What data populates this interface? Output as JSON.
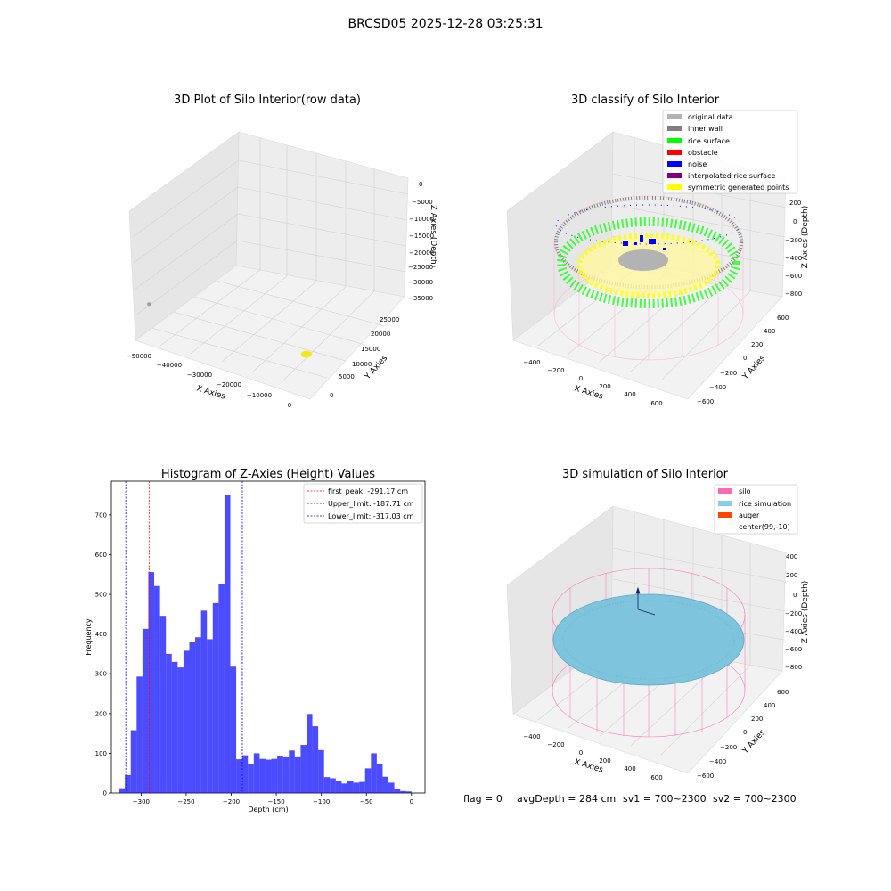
{
  "figure": {
    "suptitle": "BRCSD05 2025-12-28 03:25:31",
    "status": {
      "flag": "flag = 0",
      "avg_depth": "avgDepth = 284 cm",
      "sv1": "sv1 = 700~2300",
      "sv2": "sv2 = 700~2300"
    }
  },
  "chart_data": [
    {
      "type": "scatter",
      "panel": "raw",
      "title": "3D Plot of Silo Interior(row data)",
      "xlabel": "X Axies",
      "ylabel": "Y Axies",
      "zlabel": "Z Axies (Depth)",
      "x_ticks": [
        "−50000",
        "−40000",
        "−30000",
        "−20000",
        "−10000",
        "0"
      ],
      "y_ticks": [
        "0",
        "5000",
        "10000",
        "15000",
        "20000",
        "25000"
      ],
      "z_ticks": [
        "0",
        "−5000",
        "−10000",
        "−15000",
        "−20000",
        "−25000",
        "−30000",
        "−35000"
      ],
      "xlim": [
        -52000,
        2000
      ],
      "ylim": [
        -2000,
        27000
      ],
      "zlim": [
        -37000,
        1000
      ],
      "grid": true,
      "series": [
        {
          "name": "",
          "color": "#9e9e9e",
          "points": [
            [
              -50500,
              500,
              -21000
            ]
          ]
        },
        {
          "name": "",
          "color": "#f2e61c",
          "points": [
            [
              -1500,
              200,
              -19000
            ]
          ]
        }
      ]
    },
    {
      "type": "scatter",
      "panel": "classify",
      "title": "3D classify of Silo Interior",
      "xlabel": "X Axies",
      "ylabel": "Y Axies",
      "zlabel": "Z Axies (Depth)",
      "x_ticks": [
        "−400",
        "−200",
        "0",
        "200",
        "400",
        "600"
      ],
      "y_ticks": [
        "−600",
        "−400",
        "−200",
        "0",
        "200",
        "400",
        "600"
      ],
      "z_ticks": [
        "200",
        "0",
        "−200",
        "−400",
        "−600",
        "−800"
      ],
      "grid": true,
      "legend": {
        "location": "top-right",
        "entries": [
          {
            "label": "original data",
            "color": "#b3b3b3"
          },
          {
            "label": "inner wall",
            "color": "#808080"
          },
          {
            "label": "rice surface",
            "color": "#00ff00"
          },
          {
            "label": "obstacle",
            "color": "#ff0000"
          },
          {
            "label": "noise",
            "color": "#0000ff"
          },
          {
            "label": "interpolated rice surface",
            "color": "#800080"
          },
          {
            "label": "symmetric generated points",
            "color": "#ffff00"
          }
        ]
      }
    },
    {
      "type": "bar",
      "panel": "histogram",
      "title": "Histogram of Z-Axies (Height) Values",
      "xlabel": "Depth (cm)",
      "ylabel": "Frequency",
      "xlim": [
        -333,
        15
      ],
      "ylim": [
        0,
        785
      ],
      "x_ticks": [
        -300,
        -250,
        -200,
        -150,
        -100,
        -50,
        0
      ],
      "x_tick_labels": [
        "−300",
        "−250",
        "−200",
        "−150",
        "−100",
        "−50",
        "0"
      ],
      "y_ticks": [
        0,
        100,
        200,
        300,
        400,
        500,
        600,
        700
      ],
      "bar_color": "#0000ff",
      "bin_edges": [
        -324.5,
        -318.0,
        -311.5,
        -305.0,
        -298.5,
        -292.0,
        -285.5,
        -279.0,
        -272.5,
        -266.0,
        -259.5,
        -253.0,
        -246.5,
        -240.0,
        -233.5,
        -227.0,
        -220.5,
        -214.0,
        -207.5,
        -201.0,
        -194.5,
        -188.0,
        -181.5,
        -175.0,
        -168.5,
        -162.0,
        -155.5,
        -149.0,
        -142.5,
        -136.0,
        -129.5,
        -123.0,
        -116.5,
        -110.0,
        -103.5,
        -97.0,
        -90.5,
        -84.0,
        -77.5,
        -71.0,
        -64.5,
        -58.0,
        -51.5,
        -45.0,
        -38.5,
        -32.0,
        -25.5,
        -19.0,
        -12.5,
        -6.0,
        0.0
      ],
      "counts": [
        12,
        45,
        158,
        293,
        413,
        556,
        521,
        446,
        350,
        330,
        316,
        358,
        380,
        392,
        459,
        387,
        478,
        525,
        750,
        318,
        85,
        95,
        72,
        100,
        86,
        84,
        86,
        94,
        90,
        107,
        90,
        121,
        199,
        168,
        108,
        40,
        37,
        30,
        24,
        30,
        26,
        28,
        62,
        100,
        72,
        41,
        26,
        10,
        5,
        4
      ],
      "vlines": [
        {
          "label": "first_peak: -291.17 cm",
          "value": -291.17,
          "color": "#ff0000"
        },
        {
          "label": "Upper_limit: -187.71 cm",
          "value": -187.71,
          "color": "#0000ff"
        },
        {
          "label": "Lower_limit: -317.03 cm",
          "value": -317.03,
          "color": "#0000ff"
        }
      ],
      "legend": {
        "location": "top-right"
      }
    },
    {
      "type": "scatter",
      "panel": "simulation",
      "title": "3D simulation of Silo Interior",
      "xlabel": "X Axies",
      "ylabel": "Y Axies",
      "zlabel": "Z Axies (Depth)",
      "x_ticks": [
        "−400",
        "−200",
        "0",
        "200",
        "400",
        "600"
      ],
      "y_ticks": [
        "−600",
        "−400",
        "−200",
        "0",
        "200",
        "400",
        "600"
      ],
      "z_ticks": [
        "400",
        "200",
        "0",
        "−200",
        "−400",
        "−600",
        "−800"
      ],
      "grid": true,
      "legend": {
        "location": "top-right",
        "entries": [
          {
            "label": "silo",
            "color": "#ff69b4"
          },
          {
            "label": "rice simulation",
            "color": "#87ceeb"
          },
          {
            "label": "auger",
            "color": "#ff4500"
          },
          {
            "label": "center(99,-10)",
            "color": ""
          }
        ]
      }
    }
  ]
}
